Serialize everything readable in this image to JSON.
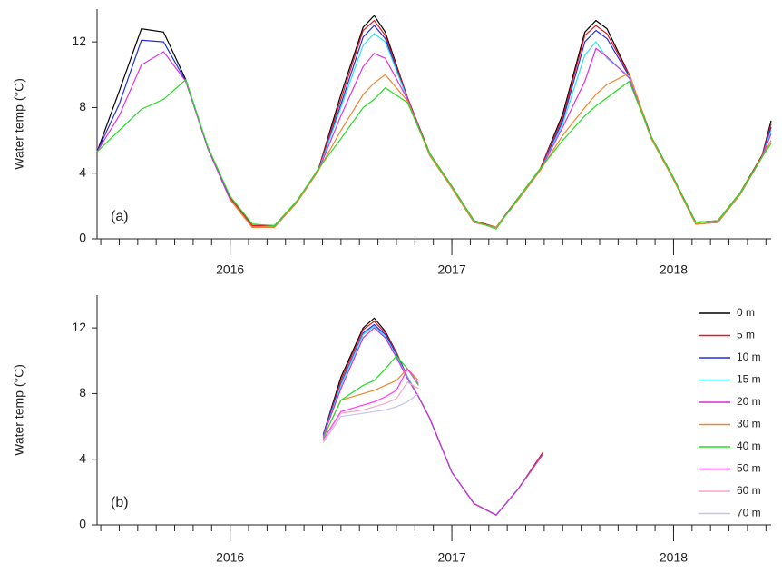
{
  "chart_data": [
    {
      "type": "line",
      "ylabel": "Water temp (°C)",
      "annotation": "(a)",
      "x": [
        2015.4,
        2015.5,
        2015.6,
        2015.7,
        2015.8,
        2015.9,
        2016.0,
        2016.1,
        2016.2,
        2016.3,
        2016.4,
        2016.5,
        2016.6,
        2016.65,
        2016.7,
        2016.8,
        2016.9,
        2017.0,
        2017.1,
        2017.2,
        2017.3,
        2017.4,
        2017.5,
        2017.6,
        2017.65,
        2017.7,
        2017.8,
        2017.9,
        2018.0,
        2018.1,
        2018.2,
        2018.3,
        2018.4,
        2018.44
      ],
      "xlim": [
        2015.4,
        2018.44
      ],
      "xticks": [
        2016,
        2017,
        2018
      ],
      "ylim": [
        0,
        14
      ],
      "yticks": [
        0,
        4,
        8,
        12
      ],
      "series": [
        {
          "color": "#000000",
          "values": [
            5.3,
            9.0,
            12.8,
            12.6,
            9.7,
            5.5,
            2.5,
            0.8,
            0.8,
            2.2,
            4.3,
            8.8,
            12.9,
            13.6,
            12.6,
            8.6,
            5.2,
            3.2,
            1.1,
            0.7,
            2.5,
            4.3,
            7.6,
            12.6,
            13.3,
            12.8,
            10.0,
            6.2,
            3.7,
            1.0,
            1.1,
            2.8,
            5.1,
            7.2
          ]
        },
        {
          "color": "#e8141e",
          "values": [
            null,
            null,
            null,
            null,
            null,
            null,
            2.5,
            0.8,
            0.8,
            2.2,
            4.3,
            8.5,
            12.7,
            13.3,
            12.4,
            8.6,
            5.2,
            3.2,
            1.1,
            0.7,
            2.5,
            4.3,
            7.4,
            12.4,
            13.0,
            12.5,
            10.0,
            6.2,
            3.7,
            1.0,
            1.1,
            2.8,
            5.1,
            7.0
          ]
        },
        {
          "color": "#1f2ee0",
          "values": [
            5.3,
            8.2,
            12.1,
            12.0,
            9.6,
            5.5,
            2.4,
            0.7,
            0.7,
            2.2,
            4.2,
            8.2,
            12.3,
            13.0,
            12.2,
            8.5,
            5.1,
            3.1,
            1.0,
            0.7,
            2.4,
            4.2,
            7.2,
            12.0,
            12.7,
            12.2,
            9.9,
            6.1,
            3.6,
            0.9,
            1.0,
            2.7,
            5.0,
            6.8
          ]
        },
        {
          "color": "#2fe3f0",
          "values": [
            null,
            null,
            null,
            null,
            null,
            null,
            2.4,
            0.7,
            0.7,
            2.2,
            4.2,
            8.0,
            11.8,
            12.5,
            12.0,
            8.5,
            5.1,
            3.1,
            1.0,
            0.7,
            2.4,
            4.2,
            7.0,
            11.2,
            12.0,
            11.0,
            9.9,
            6.1,
            3.6,
            0.9,
            1.0,
            2.7,
            5.0,
            6.6
          ]
        },
        {
          "color": "#e030e0",
          "values": [
            5.3,
            7.5,
            10.6,
            11.4,
            9.6,
            5.5,
            2.4,
            0.7,
            0.7,
            2.2,
            4.2,
            7.5,
            10.5,
            11.3,
            11.0,
            8.5,
            5.1,
            3.1,
            1.0,
            0.7,
            2.4,
            4.2,
            6.8,
            9.6,
            11.6,
            11.1,
            9.8,
            6.1,
            3.6,
            0.9,
            1.0,
            2.7,
            5.0,
            6.4
          ]
        },
        {
          "color": "#f2852e",
          "values": [
            null,
            null,
            null,
            null,
            null,
            null,
            2.4,
            0.7,
            0.7,
            2.2,
            4.2,
            6.6,
            8.8,
            9.5,
            10.0,
            8.4,
            5.1,
            3.1,
            1.0,
            0.7,
            2.4,
            4.2,
            6.3,
            8.0,
            8.8,
            9.4,
            10.1,
            6.1,
            3.6,
            0.9,
            1.0,
            2.7,
            5.0,
            6.0
          ]
        },
        {
          "color": "#22dd22",
          "values": [
            5.3,
            6.6,
            7.9,
            8.5,
            9.7,
            5.6,
            2.6,
            0.9,
            0.8,
            2.3,
            4.3,
            6.1,
            8.0,
            8.5,
            9.2,
            8.3,
            5.2,
            3.2,
            1.1,
            0.6,
            2.5,
            4.3,
            6.0,
            7.5,
            8.1,
            8.6,
            9.6,
            6.2,
            3.7,
            1.0,
            1.1,
            2.8,
            5.0,
            5.8
          ]
        }
      ]
    },
    {
      "type": "line",
      "ylabel": "Water temp (°C)",
      "annotation": "(b)",
      "legend": "right",
      "x": [
        2016.42,
        2016.5,
        2016.6,
        2016.65,
        2016.7,
        2016.75,
        2016.8,
        2016.85,
        2016.9,
        2017.0,
        2017.1,
        2017.2,
        2017.3,
        2017.41
      ],
      "xlim": [
        2015.4,
        2018.44
      ],
      "xticks": [
        2016,
        2017,
        2018
      ],
      "ylim": [
        0,
        14
      ],
      "yticks": [
        0,
        4,
        8,
        12
      ],
      "series": [
        {
          "name": "0 m",
          "color": "#000000",
          "values": [
            5.5,
            9.0,
            12.0,
            12.6,
            11.8,
            10.5,
            9.0,
            7.8,
            6.5,
            3.2,
            1.3,
            0.6,
            2.2,
            4.4
          ]
        },
        {
          "name": "5 m",
          "color": "#e8141e",
          "values": [
            5.5,
            8.8,
            11.9,
            12.4,
            11.7,
            10.5,
            9.0,
            7.8,
            6.5,
            3.2,
            1.3,
            0.6,
            2.2,
            4.4
          ]
        },
        {
          "name": "10 m",
          "color": "#1f2ee0",
          "values": [
            5.5,
            8.6,
            11.7,
            12.2,
            11.6,
            10.4,
            9.0,
            7.8,
            6.5,
            3.2,
            1.3,
            0.6,
            2.2,
            4.3
          ]
        },
        {
          "name": "15 m",
          "color": "#2fe3f0",
          "values": [
            5.4,
            8.5,
            11.6,
            12.1,
            11.5,
            10.3,
            9.0,
            7.8,
            6.5,
            3.2,
            1.3,
            0.6,
            2.2,
            4.3
          ]
        },
        {
          "name": "20 m",
          "color": "#d42fd4",
          "values": [
            5.4,
            8.3,
            11.4,
            12.0,
            11.4,
            10.2,
            8.9,
            7.8,
            6.5,
            3.2,
            1.3,
            0.6,
            2.2,
            4.3
          ]
        },
        {
          "name": "30 m",
          "color": "#f2852e",
          "values": [
            5.3,
            7.6,
            8.0,
            8.2,
            8.5,
            8.8,
            9.5,
            8.8,
            null,
            null,
            null,
            null,
            null,
            null
          ]
        },
        {
          "name": "40 m",
          "color": "#22dd22",
          "values": [
            5.3,
            7.6,
            8.5,
            8.8,
            9.5,
            10.3,
            9.5,
            8.5,
            null,
            null,
            null,
            null,
            null,
            null
          ]
        },
        {
          "name": "50 m",
          "color": "#ff38ff",
          "values": [
            5.2,
            6.9,
            7.3,
            7.5,
            7.8,
            8.2,
            9.5,
            8.6,
            null,
            null,
            null,
            null,
            null,
            null
          ]
        },
        {
          "name": "60 m",
          "color": "#f2a8c4",
          "values": [
            5.1,
            6.8,
            7.0,
            7.2,
            7.4,
            7.7,
            8.7,
            8.3,
            null,
            null,
            null,
            null,
            null,
            null
          ]
        },
        {
          "name": "70 m",
          "color": "#c4c4f2",
          "values": [
            5.0,
            6.6,
            6.8,
            6.9,
            7.0,
            7.2,
            7.5,
            8.0,
            null,
            null,
            null,
            null,
            null,
            null
          ]
        }
      ]
    }
  ]
}
